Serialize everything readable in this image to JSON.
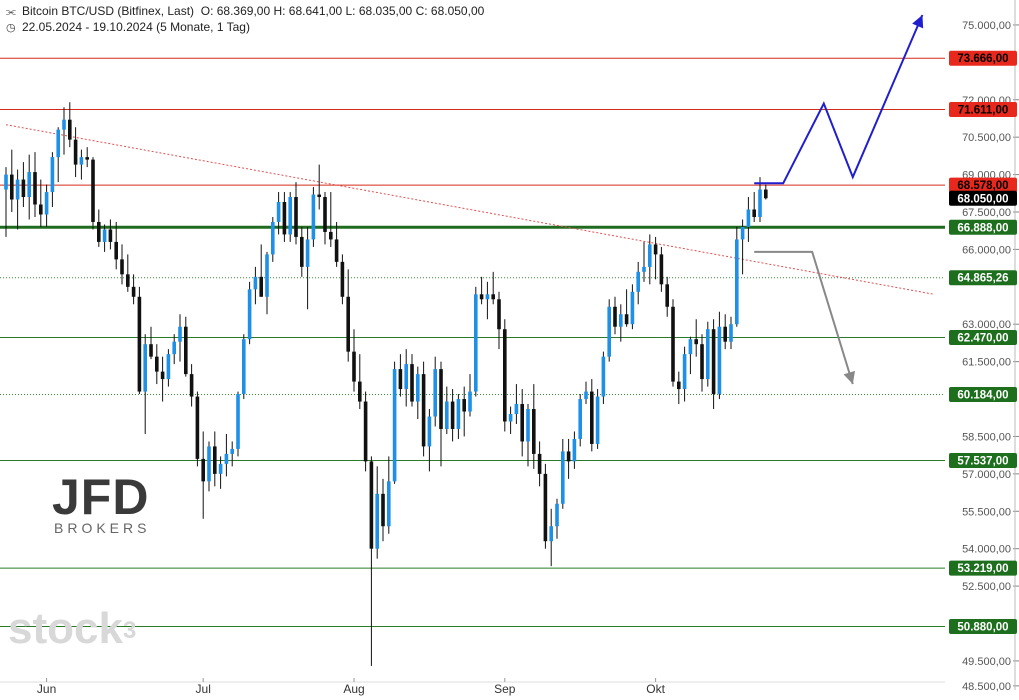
{
  "header": {
    "instrument_icon": "candlestick-icon",
    "instrument": "Bitcoin BTC/USD (Bitfinex, Last)",
    "ohlc": "O: 68.369,00  H: 68.641,00  L: 68.035,00  C: 68.050,00",
    "date_icon": "clock-icon",
    "date_range": "22.05.2024 - 19.10.2024  (5 Monate, 1 Tag)"
  },
  "branding": {
    "logo": "JFD",
    "logo_sub": "BROKERS",
    "watermark": "stock",
    "watermark_sup": "3"
  },
  "chart_data": {
    "type": "candlestick",
    "title": "Bitcoin BTC/USD (Bitfinex, Last)",
    "x_ticks": [
      {
        "label": "Jun",
        "index": 7
      },
      {
        "label": "Jul",
        "index": 34
      },
      {
        "label": "Aug",
        "index": 60
      },
      {
        "label": "Sep",
        "index": 86
      },
      {
        "label": "Okt",
        "index": 112
      }
    ],
    "y_range": [
      48500,
      76000
    ],
    "y_ticks": [
      75000,
      72000,
      70500,
      69000,
      67500,
      66000,
      63000,
      61500,
      58500,
      57000,
      55500,
      54000,
      52500,
      49500,
      48500
    ],
    "y_tick_labels": [
      "75.000,00",
      "72.000,00",
      "70.500,00",
      "69.000,00",
      "67.500,00",
      "66.000,00",
      "63.000,00",
      "61.500,00",
      "58.500,00",
      "57.000,00",
      "55.500,00",
      "54.000,00",
      "52.500,00",
      "49.500,00",
      "48.500,00"
    ],
    "levels": [
      {
        "value": 73666,
        "label": "73.666,00",
        "line": "#d42a1a",
        "bg": "#e8281c",
        "fg": "#000000",
        "weight": 1
      },
      {
        "value": 71611,
        "label": "71.611,00",
        "line": "#d42a1a",
        "bg": "#e8281c",
        "fg": "#000000",
        "weight": 1
      },
      {
        "value": 68578,
        "label": "68.578,00",
        "line": "#d42a1a",
        "bg": "#e8281c",
        "fg": "#000000",
        "weight": 1
      },
      {
        "value": 68050,
        "label": "68.050,00",
        "line": "none",
        "bg": "#000000",
        "fg": "#ffffff",
        "weight": 0
      },
      {
        "value": 66888,
        "label": "66.888,00",
        "line": "#1f6b1f",
        "bg": "#1d6e1d",
        "fg": "#ffffff",
        "weight": 3
      },
      {
        "value": 64865.26,
        "label": "64.865,26",
        "line": "#3a8a3a",
        "bg": "#1d6e1d",
        "fg": "#ffffff",
        "weight": 1,
        "dotted": true
      },
      {
        "value": 62470,
        "label": "62.470,00",
        "line": "#2a7a2a",
        "bg": "#1d6e1d",
        "fg": "#ffffff",
        "weight": 1
      },
      {
        "value": 60184,
        "label": "60.184,00",
        "line": "#3a8a3a",
        "bg": "#1d6e1d",
        "fg": "#ffffff",
        "weight": 1,
        "dotted": true
      },
      {
        "value": 57537,
        "label": "57.537,00",
        "line": "#2a7a2a",
        "bg": "#1d6e1d",
        "fg": "#ffffff",
        "weight": 1
      },
      {
        "value": 53219,
        "label": "53.219,00",
        "line": "#2a7a2a",
        "bg": "#1d6e1d",
        "fg": "#ffffff",
        "weight": 1
      },
      {
        "value": 50880,
        "label": "50.880,00",
        "line": "#2a7a2a",
        "bg": "#1d6e1d",
        "fg": "#ffffff",
        "weight": 1
      }
    ],
    "trendline": {
      "from": {
        "index": 0,
        "value": 71000
      },
      "to": {
        "index": 160,
        "value": 64200
      },
      "color": "#e05050"
    },
    "projection_up": {
      "color": "#1f1fd0",
      "points": [
        {
          "index": 129,
          "value": 68650
        },
        {
          "index": 134,
          "value": 68650
        },
        {
          "index": 141,
          "value": 71850
        },
        {
          "index": 146,
          "value": 68900
        },
        {
          "index": 158,
          "value": 75400
        }
      ]
    },
    "projection_down": {
      "color": "#888888",
      "points": [
        {
          "index": 129,
          "value": 65900
        },
        {
          "index": 139,
          "value": 65900
        },
        {
          "index": 146,
          "value": 60600
        }
      ]
    },
    "candles": [
      [
        68400,
        69300,
        66500,
        69000
      ],
      [
        69000,
        70000,
        67500,
        68000
      ],
      [
        68000,
        69200,
        66800,
        68800
      ],
      [
        68800,
        69500,
        67700,
        68100
      ],
      [
        68100,
        69800,
        67200,
        69100
      ],
      [
        69100,
        69900,
        67300,
        67800
      ],
      [
        67800,
        68800,
        66900,
        67400
      ],
      [
        67400,
        68600,
        66900,
        68300
      ],
      [
        68300,
        69900,
        67700,
        69700
      ],
      [
        69700,
        70900,
        68700,
        70800
      ],
      [
        70800,
        71700,
        69800,
        71200
      ],
      [
        71200,
        71900,
        70100,
        70400
      ],
      [
        70400,
        70900,
        68900,
        69400
      ],
      [
        69400,
        70000,
        68800,
        69700
      ],
      [
        69700,
        70100,
        69300,
        69600
      ],
      [
        69600,
        69700,
        66800,
        67100
      ],
      [
        67100,
        67600,
        66100,
        66300
      ],
      [
        66300,
        67000,
        65900,
        66800
      ],
      [
        66800,
        67200,
        66000,
        66300
      ],
      [
        66300,
        67100,
        65200,
        65600
      ],
      [
        65600,
        66200,
        64600,
        65000
      ],
      [
        65000,
        65800,
        64300,
        64500
      ],
      [
        64500,
        65000,
        63800,
        64100
      ],
      [
        64100,
        64500,
        60200,
        60300
      ],
      [
        60300,
        62600,
        58600,
        62200
      ],
      [
        62200,
        62900,
        61600,
        61700
      ],
      [
        61700,
        62200,
        60600,
        61100
      ],
      [
        61100,
        61700,
        59900,
        60800
      ],
      [
        60800,
        62000,
        60500,
        61800
      ],
      [
        61800,
        62600,
        61400,
        62300
      ],
      [
        62300,
        63400,
        61500,
        62900
      ],
      [
        62900,
        63300,
        60900,
        61000
      ],
      [
        61000,
        61400,
        59700,
        60100
      ],
      [
        60100,
        60300,
        57300,
        57600
      ],
      [
        57600,
        58700,
        55200,
        56700
      ],
      [
        56700,
        58300,
        56300,
        58100
      ],
      [
        58100,
        58700,
        56500,
        57000
      ],
      [
        57000,
        57700,
        56400,
        57400
      ],
      [
        57400,
        58600,
        56900,
        57800
      ],
      [
        57800,
        58300,
        57300,
        58000
      ],
      [
        58000,
        60300,
        57700,
        60200
      ],
      [
        60200,
        62600,
        60000,
        62400
      ],
      [
        62400,
        64700,
        62200,
        64400
      ],
      [
        64400,
        65300,
        63800,
        64900
      ],
      [
        64900,
        66200,
        64100,
        64100
      ],
      [
        64100,
        65900,
        63400,
        65800
      ],
      [
        65800,
        67300,
        65500,
        67100
      ],
      [
        67100,
        68300,
        66600,
        67900
      ],
      [
        67900,
        68300,
        66300,
        66600
      ],
      [
        66600,
        68300,
        66300,
        68100
      ],
      [
        68100,
        68700,
        66200,
        66500
      ],
      [
        66500,
        66900,
        64900,
        65300
      ],
      [
        65300,
        66900,
        63600,
        66400
      ],
      [
        66400,
        68500,
        66100,
        68200
      ],
      [
        68200,
        69400,
        67600,
        68100
      ],
      [
        68100,
        68300,
        66200,
        66700
      ],
      [
        66700,
        68300,
        66100,
        66400
      ],
      [
        66400,
        67100,
        65300,
        65500
      ],
      [
        65500,
        65800,
        63800,
        64100
      ],
      [
        64100,
        65200,
        61500,
        61900
      ],
      [
        61900,
        62800,
        60300,
        60700
      ],
      [
        60700,
        61800,
        59600,
        59900
      ],
      [
        59900,
        60300,
        57100,
        57500
      ],
      [
        57500,
        57700,
        49300,
        54000
      ],
      [
        54000,
        57300,
        53600,
        56200
      ],
      [
        56200,
        56800,
        54300,
        54900
      ],
      [
        54900,
        57700,
        54600,
        56700
      ],
      [
        56700,
        61500,
        56600,
        61200
      ],
      [
        61200,
        61800,
        60100,
        60400
      ],
      [
        60400,
        62000,
        59700,
        61400
      ],
      [
        61400,
        61800,
        59700,
        59900
      ],
      [
        59900,
        61300,
        59200,
        61000
      ],
      [
        61000,
        61500,
        57700,
        58100
      ],
      [
        58100,
        59600,
        57100,
        59300
      ],
      [
        59300,
        61700,
        58900,
        61200
      ],
      [
        61200,
        61500,
        57300,
        58800
      ],
      [
        58800,
        60500,
        58600,
        59900
      ],
      [
        59900,
        60400,
        58300,
        58800
      ],
      [
        58800,
        60200,
        58400,
        60000
      ],
      [
        60000,
        60500,
        58500,
        59500
      ],
      [
        59500,
        61000,
        59300,
        60300
      ],
      [
        60300,
        64500,
        60100,
        64200
      ],
      [
        64200,
        64900,
        63800,
        64000
      ],
      [
        64000,
        64700,
        63200,
        64200
      ],
      [
        64200,
        65100,
        63800,
        64000
      ],
      [
        64000,
        64300,
        62000,
        62800
      ],
      [
        62800,
        63200,
        58700,
        59100
      ],
      [
        59100,
        59700,
        58600,
        59400
      ],
      [
        59400,
        60600,
        59000,
        59800
      ],
      [
        59800,
        60400,
        57700,
        58300
      ],
      [
        58300,
        59800,
        57300,
        59600
      ],
      [
        59600,
        60600,
        57200,
        57800
      ],
      [
        57800,
        58300,
        56500,
        57000
      ],
      [
        57000,
        57400,
        54000,
        54300
      ],
      [
        54300,
        55600,
        53300,
        54900
      ],
      [
        54900,
        56000,
        54400,
        55800
      ],
      [
        55800,
        58400,
        55600,
        57900
      ],
      [
        57900,
        58400,
        56800,
        57500
      ],
      [
        57500,
        58700,
        57200,
        58400
      ],
      [
        58400,
        60200,
        58100,
        60000
      ],
      [
        60000,
        60700,
        59800,
        60300
      ],
      [
        60300,
        60800,
        57900,
        58200
      ],
      [
        58200,
        60400,
        58000,
        60100
      ],
      [
        60100,
        61900,
        59800,
        61700
      ],
      [
        61700,
        64000,
        61500,
        63700
      ],
      [
        63700,
        64100,
        62600,
        62900
      ],
      [
        62900,
        63800,
        62300,
        63400
      ],
      [
        63400,
        64400,
        62900,
        63000
      ],
      [
        63000,
        64600,
        62800,
        64300
      ],
      [
        64300,
        65500,
        63800,
        65100
      ],
      [
        65100,
        66300,
        64700,
        65300
      ],
      [
        65300,
        66600,
        64600,
        66200
      ],
      [
        66200,
        66500,
        64800,
        65800
      ],
      [
        65800,
        66100,
        64300,
        64600
      ],
      [
        64600,
        64900,
        63300,
        63700
      ],
      [
        63700,
        64000,
        60500,
        60700
      ],
      [
        60700,
        61100,
        59800,
        60400
      ],
      [
        60400,
        62100,
        59900,
        61800
      ],
      [
        61800,
        62500,
        61000,
        62400
      ],
      [
        62400,
        63200,
        61700,
        62200
      ],
      [
        62200,
        62600,
        60300,
        60800
      ],
      [
        60800,
        63100,
        60500,
        62800
      ],
      [
        62800,
        63200,
        59600,
        60200
      ],
      [
        60200,
        63500,
        60000,
        62900
      ],
      [
        62900,
        63400,
        62000,
        62300
      ],
      [
        62300,
        63300,
        62000,
        63000
      ],
      [
        63000,
        66900,
        62900,
        66400
      ],
      [
        66400,
        67200,
        65000,
        66900
      ],
      [
        66900,
        68100,
        66300,
        67600
      ],
      [
        67600,
        68300,
        67100,
        67300
      ],
      [
        67300,
        68900,
        67100,
        68400
      ],
      [
        68400,
        68600,
        68000,
        68050
      ]
    ]
  }
}
